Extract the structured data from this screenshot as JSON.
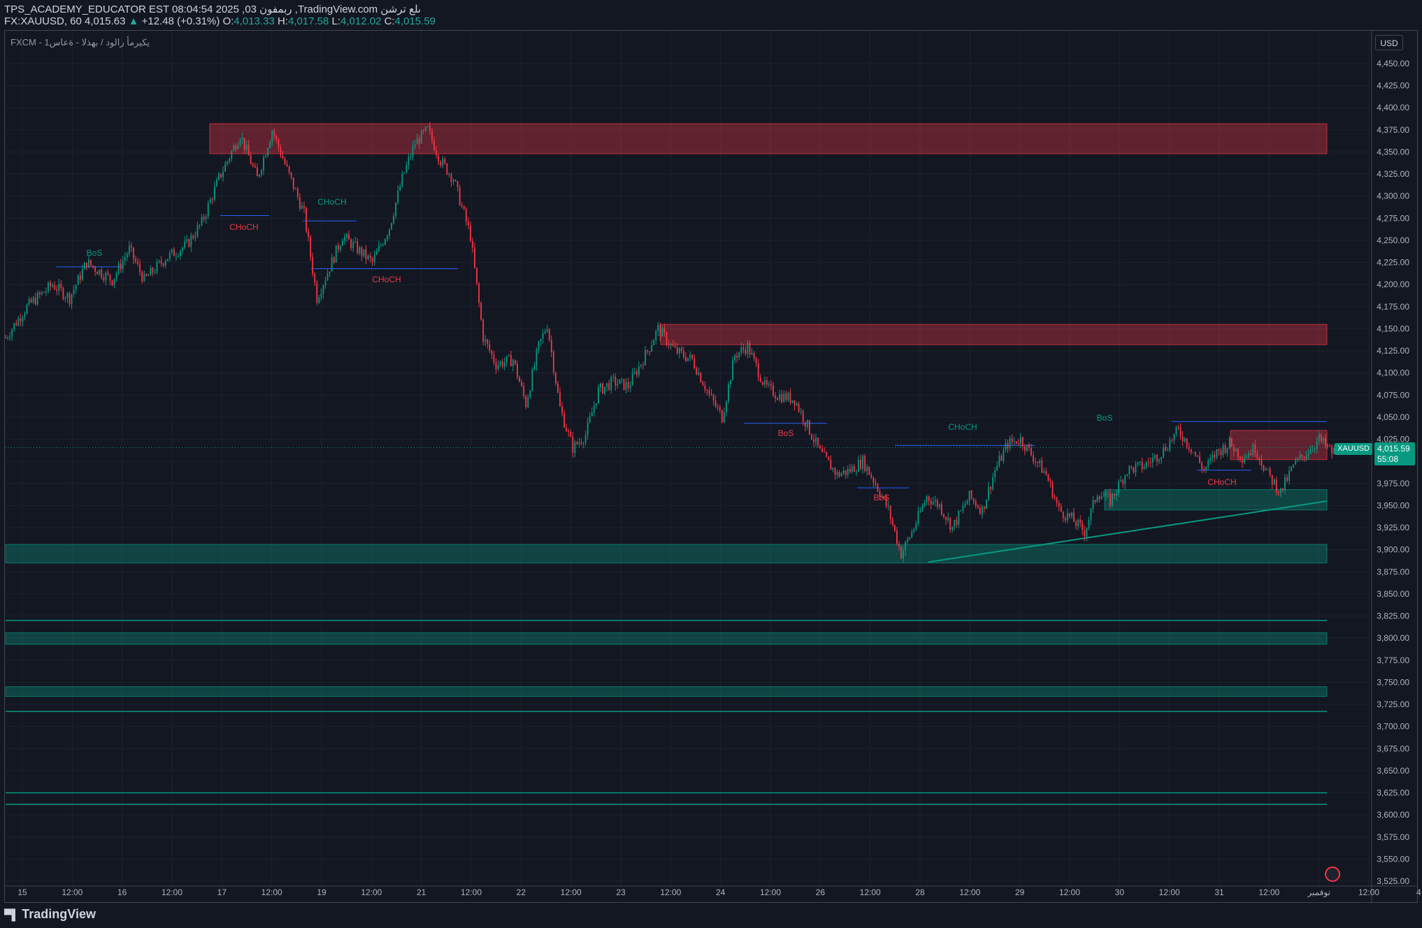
{
  "header": {
    "line1": "TPS_ACADEMY_EDUCATOR EST 08:04:54 2025 ,03 ربمفون ,TradingView.com ىلع ترشن",
    "symbol_desc": "FX:XAUUSD, 60",
    "last": "4,015.63",
    "change": "+12.48 (+0.31%)",
    "o_label": "O:",
    "o": "4,013.33",
    "h_label": "H:",
    "h": "4,017.58",
    "l_label": "L:",
    "l": "4,012.02",
    "c_label": "C:",
    "c": "4,015.59"
  },
  "legend": "FXCM - يكيرمأ رالود / بهذلا - ةعاس1",
  "currency_button": "USD",
  "price_label": {
    "symbol": "XAUUSD",
    "price": "4,015.59",
    "countdown": "55:08"
  },
  "brand": "TradingView",
  "colors": {
    "bull": "#089981",
    "bear": "#f23645",
    "bg": "#131722",
    "grid": "#1e222d",
    "text": "#b2b5be"
  },
  "chart_data": {
    "type": "candlestick",
    "symbol": "XAUUSD",
    "timeframe": "60",
    "y_axis": {
      "min": 3525,
      "max": 4450,
      "step": 25,
      "labels": [
        "4,450.00",
        "4,425.00",
        "4,400.00",
        "4,375.00",
        "4,350.00",
        "4,325.00",
        "4,300.00",
        "4,275.00",
        "4,250.00",
        "4,225.00",
        "4,200.00",
        "4,175.00",
        "4,150.00",
        "4,125.00",
        "4,100.00",
        "4,075.00",
        "4,050.00",
        "4,025.00",
        "4,000.00",
        "3,975.00",
        "3,950.00",
        "3,925.00",
        "3,900.00",
        "3,875.00",
        "3,850.00",
        "3,825.00",
        "3,800.00",
        "3,775.00",
        "3,750.00",
        "3,725.00",
        "3,700.00",
        "3,675.00",
        "3,650.00",
        "3,625.00",
        "3,600.00",
        "3,575.00",
        "3,550.00",
        "3,525.00"
      ]
    },
    "x_axis": {
      "labels": [
        "15",
        "12:00",
        "16",
        "12:00",
        "17",
        "12:00",
        "19",
        "12:00",
        "21",
        "12:00",
        "22",
        "12:00",
        "23",
        "12:00",
        "24",
        "12:00",
        "26",
        "12:00",
        "28",
        "12:00",
        "29",
        "12:00",
        "30",
        "12:00",
        "31",
        "12:00",
        "نوفمبر",
        "12:00",
        "4"
      ]
    },
    "current_price": 4015.59,
    "path": [
      [
        0,
        4140
      ],
      [
        10,
        4175
      ],
      [
        22,
        4200
      ],
      [
        30,
        4185
      ],
      [
        38,
        4225
      ],
      [
        50,
        4205
      ],
      [
        58,
        4240
      ],
      [
        65,
        4205
      ],
      [
        75,
        4230
      ],
      [
        85,
        4245
      ],
      [
        92,
        4270
      ],
      [
        100,
        4320
      ],
      [
        110,
        4370
      ],
      [
        118,
        4320
      ],
      [
        125,
        4375
      ],
      [
        132,
        4330
      ],
      [
        140,
        4280
      ],
      [
        146,
        4185
      ],
      [
        152,
        4220
      ],
      [
        158,
        4255
      ],
      [
        165,
        4240
      ],
      [
        172,
        4225
      ],
      [
        180,
        4265
      ],
      [
        186,
        4320
      ],
      [
        192,
        4360
      ],
      [
        198,
        4375
      ],
      [
        204,
        4340
      ],
      [
        210,
        4320
      ],
      [
        218,
        4255
      ],
      [
        224,
        4140
      ],
      [
        230,
        4110
      ],
      [
        238,
        4115
      ],
      [
        244,
        4065
      ],
      [
        250,
        4130
      ],
      [
        254,
        4155
      ],
      [
        260,
        4060
      ],
      [
        266,
        4015
      ],
      [
        272,
        4030
      ],
      [
        278,
        4080
      ],
      [
        285,
        4090
      ],
      [
        292,
        4085
      ],
      [
        300,
        4120
      ],
      [
        306,
        4150
      ],
      [
        314,
        4125
      ],
      [
        322,
        4115
      ],
      [
        330,
        4075
      ],
      [
        336,
        4050
      ],
      [
        342,
        4120
      ],
      [
        348,
        4130
      ],
      [
        356,
        4085
      ],
      [
        362,
        4075
      ],
      [
        370,
        4070
      ],
      [
        376,
        4040
      ],
      [
        382,
        4010
      ],
      [
        390,
        3985
      ],
      [
        396,
        3990
      ],
      [
        402,
        4000
      ],
      [
        408,
        3975
      ],
      [
        414,
        3945
      ],
      [
        420,
        3895
      ],
      [
        426,
        3925
      ],
      [
        432,
        3960
      ],
      [
        438,
        3950
      ],
      [
        444,
        3925
      ],
      [
        452,
        3960
      ],
      [
        458,
        3945
      ],
      [
        464,
        3990
      ],
      [
        470,
        4020
      ],
      [
        476,
        4025
      ],
      [
        482,
        4005
      ],
      [
        488,
        3985
      ],
      [
        494,
        3945
      ],
      [
        500,
        3935
      ],
      [
        506,
        3920
      ],
      [
        512,
        3965
      ],
      [
        518,
        3955
      ],
      [
        526,
        3990
      ],
      [
        534,
        3995
      ],
      [
        542,
        4010
      ],
      [
        550,
        4035
      ],
      [
        556,
        4015
      ],
      [
        562,
        3990
      ],
      [
        568,
        4010
      ],
      [
        574,
        4020
      ],
      [
        580,
        4005
      ],
      [
        586,
        4015
      ],
      [
        592,
        3985
      ],
      [
        598,
        3965
      ],
      [
        604,
        3995
      ],
      [
        610,
        4010
      ],
      [
        616,
        4025
      ],
      [
        622,
        4010
      ],
      [
        627,
        4015.6
      ]
    ],
    "path_units": "x: hourly bar index, y: price in USD",
    "zones": [
      {
        "type": "supply",
        "from": 4348,
        "to": 4382
      },
      {
        "type": "supply",
        "from": 4132,
        "to": 4155
      },
      {
        "type": "supply",
        "from": 4002,
        "to": 4035
      },
      {
        "type": "demand",
        "from": 3945,
        "to": 3968
      },
      {
        "type": "demand",
        "from": 3885,
        "to": 3906
      },
      {
        "type": "demand",
        "from": 3793,
        "to": 3806
      },
      {
        "type": "demand",
        "from": 3734,
        "to": 3745
      },
      {
        "type": "level",
        "at": 3820
      },
      {
        "type": "level",
        "at": 3717
      },
      {
        "type": "level",
        "at": 3625
      },
      {
        "type": "level",
        "at": 3612
      }
    ],
    "annotations": [
      {
        "text": "BoS",
        "color": "#089981",
        "at": 4240
      },
      {
        "text": "CHoCH",
        "color": "#f23645",
        "at": 4255
      },
      {
        "text": "CHoCH",
        "color": "#089981",
        "at": 4290
      },
      {
        "text": "CHoCH",
        "color": "#f23645",
        "at": 4195
      },
      {
        "text": "BoS",
        "color": "#f23645",
        "at": 4025
      },
      {
        "text": "BoS",
        "color": "#f23645",
        "at": 3955
      },
      {
        "text": "CHoCH",
        "color": "#089981",
        "at": 4035
      },
      {
        "text": "BoS",
        "color": "#089981",
        "at": 4045
      },
      {
        "text": "CHoCH",
        "color": "#f23645",
        "at": 3965
      }
    ]
  }
}
